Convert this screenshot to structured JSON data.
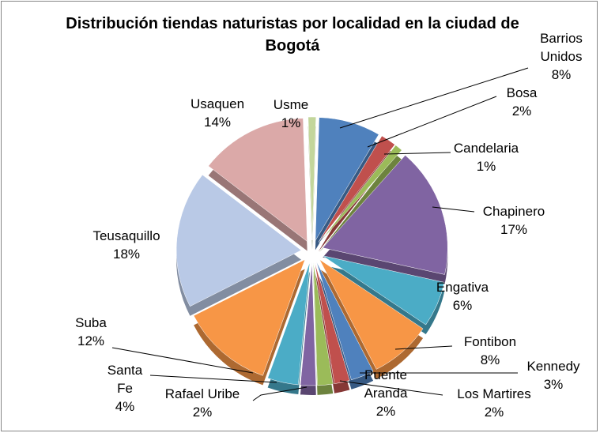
{
  "chart_data": {
    "type": "pie",
    "title": "Distribución tiendas naturistas por localidad en la ciudad de Bogotá",
    "categories": [
      "Barrios Unidos",
      "Bosa",
      "Candelaria",
      "Chapinero",
      "Engativa",
      "Fontibon",
      "Kennedy",
      "Los Martires",
      "Puente Aranda",
      "Rafael Uribe",
      "Santa Fe",
      "Suba",
      "Teusaquillo",
      "Usaquen",
      "Usme"
    ],
    "values": [
      8,
      2,
      1,
      17,
      6,
      8,
      3,
      2,
      2,
      2,
      4,
      12,
      18,
      14,
      1
    ],
    "value_labels": [
      "8%",
      "2%",
      "1%",
      "17%",
      "6%",
      "8%",
      "3%",
      "2%",
      "2%",
      "2%",
      "4%",
      "12%",
      "18%",
      "14%",
      "1%"
    ],
    "colors": [
      "#4f81bd",
      "#c0504d",
      "#9bbb59",
      "#8064a2",
      "#4bacc6",
      "#f79646",
      "#4f81bd",
      "#c0504d",
      "#9bbb59",
      "#8064a2",
      "#4bacc6",
      "#f79646",
      "#b9c9e6",
      "#dba9a8",
      "#c3d69b"
    ]
  }
}
